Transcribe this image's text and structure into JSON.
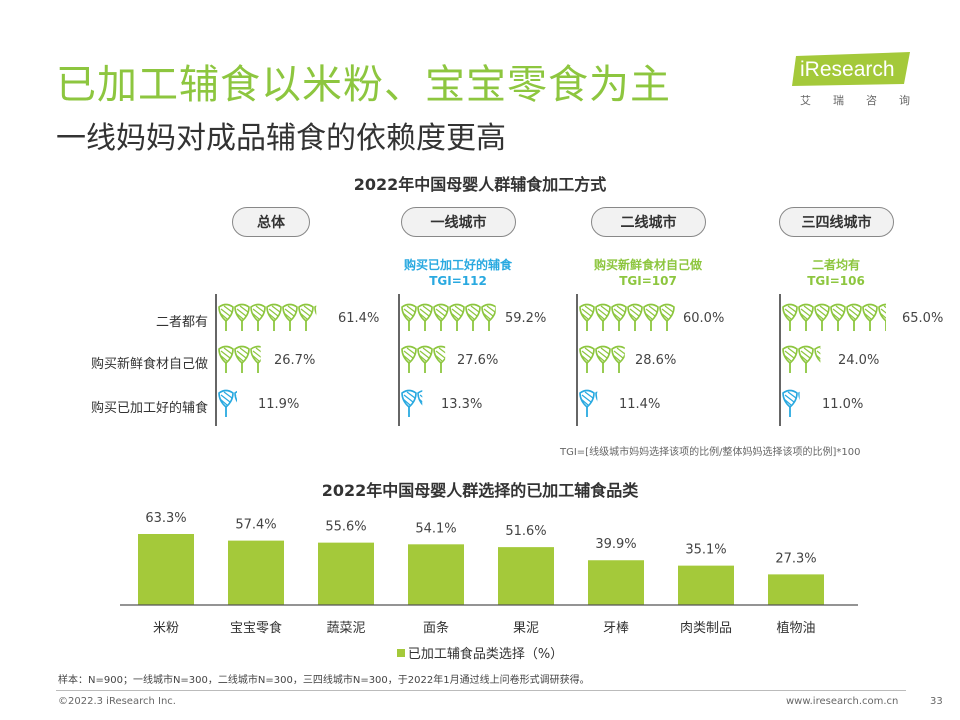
{
  "header": {
    "title": "已加工辅食以米粉、宝宝零食为主",
    "subtitle": "一线妈妈对成品辅食的依赖度更高"
  },
  "logo": {
    "name": "iResearch",
    "sub_chars": [
      "艾",
      "瑞",
      "咨",
      "询"
    ],
    "color": "#a4c93a"
  },
  "chart_data": [
    {
      "type": "pictogram",
      "title": "2022年中国母婴人群辅食加工方式",
      "row_labels": [
        "二者都有",
        "购买新鲜食材自己做",
        "购买已加工好的辅食"
      ],
      "groups": [
        {
          "name": "总体",
          "highlight": "",
          "tgi": "",
          "values": [
            61.4,
            26.7,
            11.9
          ],
          "labels": [
            "61.4%",
            "26.7%",
            "11.9%"
          ]
        },
        {
          "name": "一线城市",
          "highlight": "购买已加工好的辅食",
          "tgi": "TGI=112",
          "highlight_color": "#29a9e0",
          "values": [
            59.2,
            27.6,
            13.3
          ],
          "labels": [
            "59.2%",
            "27.6%",
            "13.3%"
          ]
        },
        {
          "name": "二线城市",
          "highlight": "购买新鲜食材自己做",
          "tgi": "TGI=107",
          "highlight_color": "#8dc63f",
          "values": [
            60.0,
            28.6,
            11.4
          ],
          "labels": [
            "60.0%",
            "28.6%",
            "11.4%"
          ]
        },
        {
          "name": "三四线城市",
          "highlight": "二者均有",
          "tgi": "TGI=106",
          "highlight_color": "#8dc63f",
          "values": [
            65.0,
            24.0,
            11.0
          ],
          "labels": [
            "65.0%",
            "24.0%",
            "11.0%"
          ]
        }
      ],
      "icon_colors": {
        "both": "#8dc63f",
        "fresh": "#8dc63f",
        "processed": "#29a9e0"
      },
      "note": "TGI=[线级城市妈妈选择该项的比例/整体妈妈选择该项的比例]*100"
    },
    {
      "type": "bar",
      "title": "2022年中国母婴人群选择的已加工辅食品类",
      "categories": [
        "米粉",
        "宝宝零食",
        "蔬菜泥",
        "面条",
        "果泥",
        "牙棒",
        "肉类制品",
        "植物油"
      ],
      "values": [
        63.3,
        57.4,
        55.6,
        54.1,
        51.6,
        39.9,
        35.1,
        27.3
      ],
      "value_labels": [
        "63.3%",
        "57.4%",
        "55.6%",
        "54.1%",
        "51.6%",
        "39.9%",
        "35.1%",
        "27.3%"
      ],
      "series": [
        {
          "name": "已加工辅食品类选择（%）",
          "color": "#a4c93a"
        }
      ],
      "ylim": [
        0,
        70
      ],
      "legend": "bottom"
    }
  ],
  "footer": {
    "sample": "样本：N=900；一线城市N=300，二线城市N=300，三四线城市N=300，于2022年1月通过线上问卷形式调研获得。",
    "copyright": "©2022.3 iResearch Inc.",
    "website": "www.iresearch.com.cn",
    "page": "33"
  }
}
